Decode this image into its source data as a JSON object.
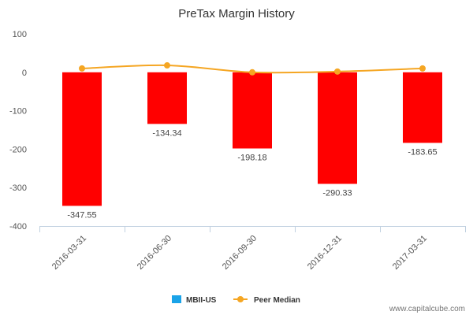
{
  "chart_data": {
    "type": "bar",
    "title": "PreTax Margin History",
    "categories": [
      "2016-03-31",
      "2016-06-30",
      "2016-09-30",
      "2016-12-31",
      "2017-03-31"
    ],
    "ylim": [
      -400,
      100
    ],
    "yticks": [
      100,
      0,
      -100,
      -200,
      -300,
      -400
    ],
    "series": [
      {
        "name": "MBII-US",
        "type": "bar",
        "color": "#ff0000",
        "legend_color": "#1aa3e8",
        "values": [
          -347.55,
          -134.34,
          -198.18,
          -290.33,
          -183.65
        ],
        "labels": [
          "-347.55",
          "-134.34",
          "-198.18",
          "-290.33",
          "-183.65"
        ]
      },
      {
        "name": "Peer Median",
        "type": "line",
        "color": "#f5a623",
        "values": [
          10,
          18,
          0,
          2,
          10
        ]
      }
    ],
    "legend_position": "bottom-center",
    "grid": false
  },
  "watermark": "www.capitalcube.com"
}
